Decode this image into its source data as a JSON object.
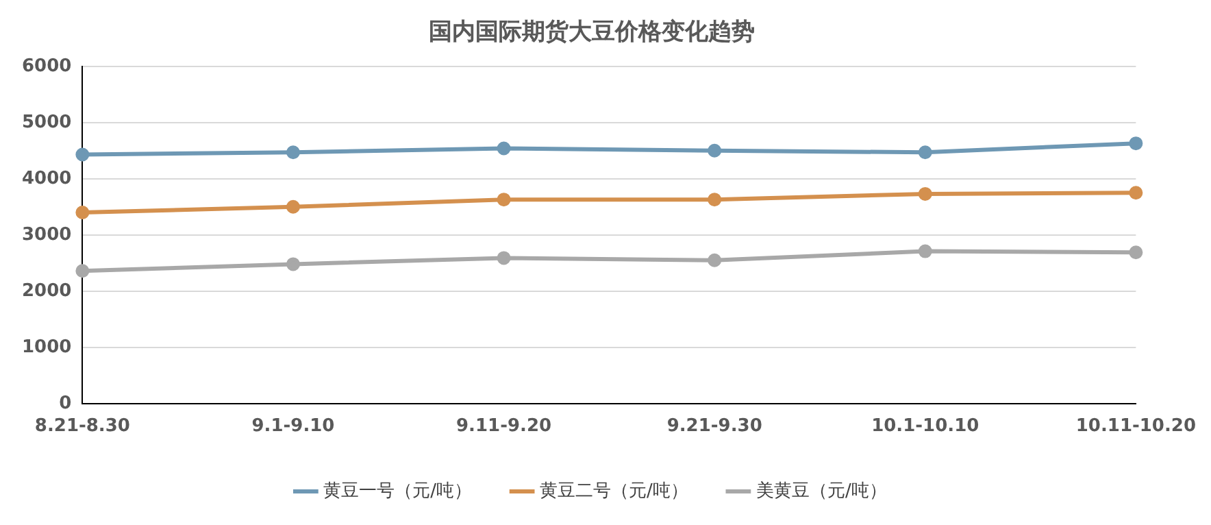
{
  "chart_data": {
    "type": "line",
    "title": "国内国际期货大豆价格变化趋势",
    "categories": [
      "8.21-8.30",
      "9.1-9.10",
      "9.11-9.20",
      "9.21-9.30",
      "10.1-10.10",
      "10.11-10.20"
    ],
    "series": [
      {
        "name": "黄豆一号（元/吨）",
        "color": "#6e98b4",
        "values": [
          4430,
          4470,
          4540,
          4500,
          4470,
          4630
        ]
      },
      {
        "name": "黄豆二号（元/吨）",
        "color": "#d4904e",
        "values": [
          3400,
          3500,
          3630,
          3630,
          3730,
          3750
        ]
      },
      {
        "name": "美黄豆（元/吨）",
        "color": "#a8a8a8",
        "values": [
          2360,
          2480,
          2590,
          2550,
          2710,
          2690
        ]
      }
    ],
    "ylim": [
      0,
      6000
    ],
    "yticks": [
      0,
      1000,
      2000,
      3000,
      4000,
      5000,
      6000
    ],
    "grid": "y",
    "legend": "bottom",
    "marker": "circle",
    "line_style": "solid"
  }
}
